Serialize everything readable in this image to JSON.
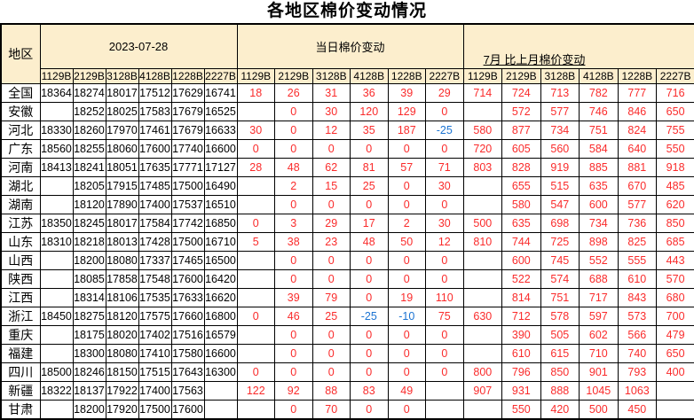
{
  "chart_data": {
    "type": "table",
    "title": "各地区棉价变动情况",
    "region_column_header": "地区",
    "column_groups": [
      {
        "label": "2023-07-28"
      },
      {
        "label": "当日棉价变动"
      },
      {
        "label": "7月 比上月棉价变动"
      }
    ],
    "grade_codes": [
      "1129B",
      "2129B",
      "3128B",
      "4128B",
      "1228B",
      "2227B"
    ],
    "rows": [
      {
        "region": "全国",
        "prices": [
          "18364",
          "18274",
          "18017",
          "17512",
          "17629",
          "16741"
        ],
        "daily": [
          "18",
          "26",
          "31",
          "36",
          "39",
          "29"
        ],
        "monthly": [
          "714",
          "724",
          "713",
          "782",
          "777",
          "716"
        ]
      },
      {
        "region": "安徽",
        "prices": [
          "",
          "18252",
          "18025",
          "17583",
          "17679",
          "16525"
        ],
        "daily": [
          "",
          "0",
          "30",
          "120",
          "129",
          "0"
        ],
        "monthly": [
          "",
          "572",
          "577",
          "746",
          "846",
          "650"
        ]
      },
      {
        "region": "河北",
        "prices": [
          "18330",
          "18260",
          "17970",
          "17461",
          "17679",
          "16633"
        ],
        "daily": [
          "30",
          "0",
          "12",
          "35",
          "187",
          "-25"
        ],
        "monthly": [
          "580",
          "877",
          "734",
          "751",
          "824",
          "755"
        ]
      },
      {
        "region": "广东",
        "prices": [
          "18560",
          "18255",
          "18060",
          "17600",
          "17740",
          "16600"
        ],
        "daily": [
          "0",
          "0",
          "0",
          "0",
          "0",
          "0"
        ],
        "monthly": [
          "720",
          "605",
          "560",
          "584",
          "640",
          "550"
        ]
      },
      {
        "region": "河南",
        "prices": [
          "18413",
          "18241",
          "18051",
          "17635",
          "17771",
          "17127"
        ],
        "daily": [
          "28",
          "48",
          "62",
          "81",
          "57",
          "71"
        ],
        "monthly": [
          "803",
          "828",
          "919",
          "885",
          "881",
          "918"
        ]
      },
      {
        "region": "湖北",
        "prices": [
          "",
          "18205",
          "17915",
          "17485",
          "17500",
          "16490"
        ],
        "daily": [
          "",
          "2",
          "15",
          "25",
          "0",
          "30"
        ],
        "monthly": [
          "",
          "655",
          "515",
          "635",
          "670",
          "485"
        ]
      },
      {
        "region": "湖南",
        "prices": [
          "",
          "18120",
          "17890",
          "17400",
          "17537",
          "16510"
        ],
        "daily": [
          "",
          "0",
          "0",
          "0",
          "0",
          "0"
        ],
        "monthly": [
          "",
          "580",
          "547",
          "600",
          "577",
          "620"
        ]
      },
      {
        "region": "江苏",
        "prices": [
          "18350",
          "18245",
          "18017",
          "17584",
          "17742",
          "16850"
        ],
        "daily": [
          "0",
          "3",
          "29",
          "17",
          "2",
          "30"
        ],
        "monthly": [
          "500",
          "635",
          "698",
          "734",
          "736",
          "850"
        ]
      },
      {
        "region": "山东",
        "prices": [
          "18310",
          "18218",
          "18013",
          "17428",
          "17500",
          "16710"
        ],
        "daily": [
          "5",
          "38",
          "23",
          "48",
          "50",
          "12"
        ],
        "monthly": [
          "810",
          "744",
          "725",
          "898",
          "825",
          "685"
        ]
      },
      {
        "region": "山西",
        "prices": [
          "",
          "18200",
          "18080",
          "17337",
          "17465",
          "16500"
        ],
        "daily": [
          "",
          "0",
          "0",
          "0",
          "0",
          "0"
        ],
        "monthly": [
          "",
          "600",
          "745",
          "552",
          "555",
          "443"
        ]
      },
      {
        "region": "陕西",
        "prices": [
          "",
          "18085",
          "17858",
          "17548",
          "17600",
          "16420"
        ],
        "daily": [
          "",
          "0",
          "0",
          "0",
          "0",
          "0"
        ],
        "monthly": [
          "",
          "522",
          "574",
          "688",
          "610",
          "570"
        ]
      },
      {
        "region": "江西",
        "prices": [
          "",
          "18314",
          "18106",
          "17535",
          "17633",
          "16620"
        ],
        "daily": [
          "",
          "39",
          "79",
          "0",
          "19",
          "110"
        ],
        "monthly": [
          "",
          "814",
          "751",
          "717",
          "843",
          "680"
        ]
      },
      {
        "region": "浙江",
        "prices": [
          "18450",
          "18275",
          "18120",
          "17575",
          "17660",
          "16800"
        ],
        "daily": [
          "0",
          "46",
          "25",
          "-25",
          "-10",
          "75"
        ],
        "monthly": [
          "630",
          "712",
          "578",
          "597",
          "573",
          "700"
        ]
      },
      {
        "region": "重庆",
        "prices": [
          "",
          "18175",
          "18020",
          "17402",
          "17516",
          "16579"
        ],
        "daily": [
          "",
          "0",
          "0",
          "0",
          "0",
          "0"
        ],
        "monthly": [
          "",
          "390",
          "505",
          "602",
          "566",
          "479"
        ]
      },
      {
        "region": "福建",
        "prices": [
          "",
          "18300",
          "18080",
          "17410",
          "17580",
          "16600"
        ],
        "daily": [
          "",
          "0",
          "0",
          "0",
          "0",
          "0"
        ],
        "monthly": [
          "",
          "610",
          "615",
          "710",
          "740",
          "650"
        ]
      },
      {
        "region": "四川",
        "prices": [
          "18500",
          "18246",
          "18150",
          "17515",
          "17643",
          "16300"
        ],
        "daily": [
          "0",
          "0",
          "0",
          "0",
          "0",
          "0"
        ],
        "monthly": [
          "800",
          "796",
          "850",
          "901",
          "793",
          "400"
        ]
      },
      {
        "region": "新疆",
        "prices": [
          "18322",
          "18137",
          "17922",
          "17400",
          "17563",
          ""
        ],
        "daily": [
          "122",
          "92",
          "88",
          "83",
          "49",
          ""
        ],
        "monthly": [
          "907",
          "931",
          "888",
          "1045",
          "1063",
          ""
        ]
      },
      {
        "region": "甘肃",
        "prices": [
          "",
          "18200",
          "17920",
          "17500",
          "17600",
          ""
        ],
        "daily": [
          "",
          "0",
          "70",
          "0",
          "0",
          ""
        ],
        "monthly": [
          "",
          "550",
          "420",
          "500",
          "450",
          ""
        ]
      }
    ]
  },
  "colors": {
    "header_bg": "#FCEECD",
    "positive_change": "#FA2B2B",
    "negative_change": "#1A73D2",
    "price_text": "#000000",
    "border": "#000000"
  }
}
